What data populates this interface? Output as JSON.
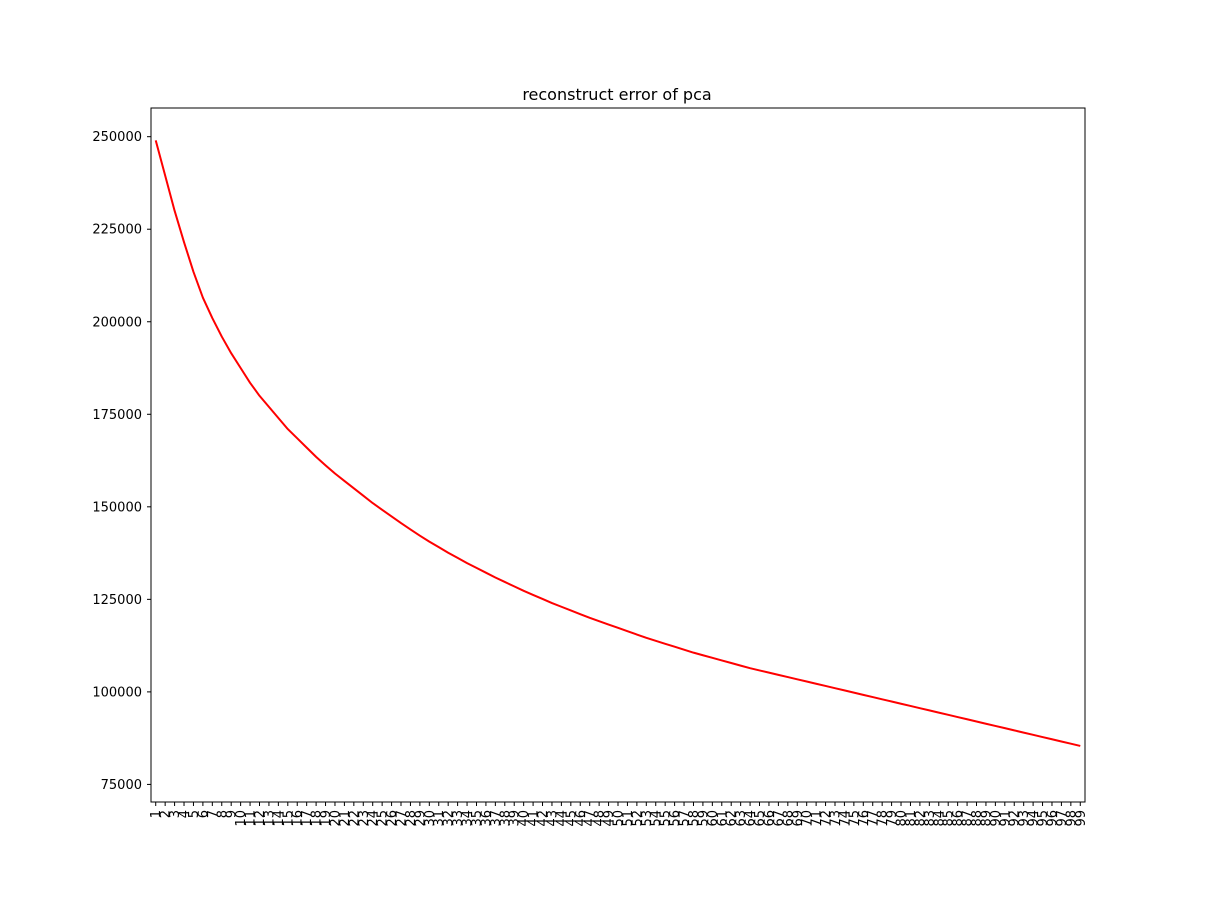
{
  "chart_data": {
    "type": "line",
    "title": "reconstruct error of pca",
    "xlabel": "",
    "ylabel": "",
    "x": [
      1,
      2,
      3,
      4,
      5,
      6,
      7,
      8,
      9,
      10,
      11,
      12,
      13,
      14,
      15,
      16,
      17,
      18,
      19,
      20,
      21,
      22,
      23,
      24,
      25,
      26,
      27,
      28,
      29,
      30,
      31,
      32,
      33,
      34,
      35,
      36,
      37,
      38,
      39,
      40,
      41,
      42,
      43,
      44,
      45,
      46,
      47,
      48,
      49,
      50,
      51,
      52,
      53,
      54,
      55,
      56,
      57,
      58,
      59,
      60,
      61,
      62,
      63,
      64,
      65,
      66,
      67,
      68,
      69,
      70,
      71,
      72,
      73,
      74,
      75,
      76,
      77,
      78,
      79,
      80,
      81,
      82,
      83,
      84,
      85,
      86,
      87,
      88,
      89,
      90,
      91,
      92,
      93,
      94,
      95,
      96,
      97,
      98,
      99
    ],
    "xtick_labels": [
      "1",
      "2",
      "3",
      "4",
      "5",
      "6",
      "7",
      "8",
      "9",
      "10",
      "11",
      "12",
      "13",
      "14",
      "15",
      "16",
      "17",
      "18",
      "19",
      "20",
      "21",
      "22",
      "23",
      "24",
      "25",
      "26",
      "27",
      "28",
      "29",
      "30",
      "31",
      "32",
      "33",
      "34",
      "35",
      "36",
      "37",
      "38",
      "39",
      "40",
      "41",
      "42",
      "43",
      "44",
      "45",
      "46",
      "47",
      "48",
      "49",
      "50",
      "51",
      "52",
      "53",
      "54",
      "55",
      "56",
      "57",
      "58",
      "59",
      "60",
      "61",
      "62",
      "63",
      "64",
      "65",
      "66",
      "67",
      "68",
      "69",
      "70",
      "71",
      "72",
      "73",
      "74",
      "75",
      "76",
      "77",
      "78",
      "79",
      "80",
      "81",
      "82",
      "83",
      "84",
      "85",
      "86",
      "87",
      "88",
      "89",
      "90",
      "91",
      "92",
      "93",
      "94",
      "95",
      "96",
      "97",
      "98",
      "99"
    ],
    "series": [
      {
        "color": "#ff0000",
        "values": [
          249000,
          239500,
          230000,
          221500,
          213500,
          206500,
          201000,
          196000,
          191500,
          187500,
          183500,
          180000,
          177000,
          174000,
          171000,
          168500,
          166000,
          163500,
          161200,
          159000,
          157000,
          155000,
          153000,
          151000,
          149200,
          147400,
          145600,
          143900,
          142200,
          140600,
          139100,
          137600,
          136200,
          134800,
          133500,
          132200,
          130900,
          129700,
          128500,
          127300,
          126200,
          125100,
          124000,
          123000,
          122000,
          121000,
          120000,
          119100,
          118200,
          117300,
          116400,
          115500,
          114600,
          113800,
          113000,
          112200,
          111400,
          110600,
          109900,
          109200,
          108500,
          107800,
          107100,
          106400,
          105800,
          105200,
          104600,
          104000,
          103400,
          102800,
          102200,
          101600,
          101000,
          100400,
          99800,
          99200,
          98600,
          98000,
          97400,
          96800,
          96200,
          95600,
          95000,
          94400,
          93800,
          93200,
          92600,
          92000,
          91400,
          90800,
          90200,
          89600,
          89000,
          88400,
          87800,
          87200,
          86600,
          86000,
          85400
        ]
      }
    ],
    "yticks": [
      75000,
      100000,
      125000,
      150000,
      175000,
      200000,
      225000,
      250000
    ],
    "ytick_labels": [
      "75000",
      "100000",
      "125000",
      "150000",
      "175000",
      "200000",
      "225000",
      "250000"
    ],
    "ylim": [
      70250,
      257750
    ],
    "xlim": [
      0.5,
      99.5
    ],
    "grid": false,
    "legend": "none"
  }
}
